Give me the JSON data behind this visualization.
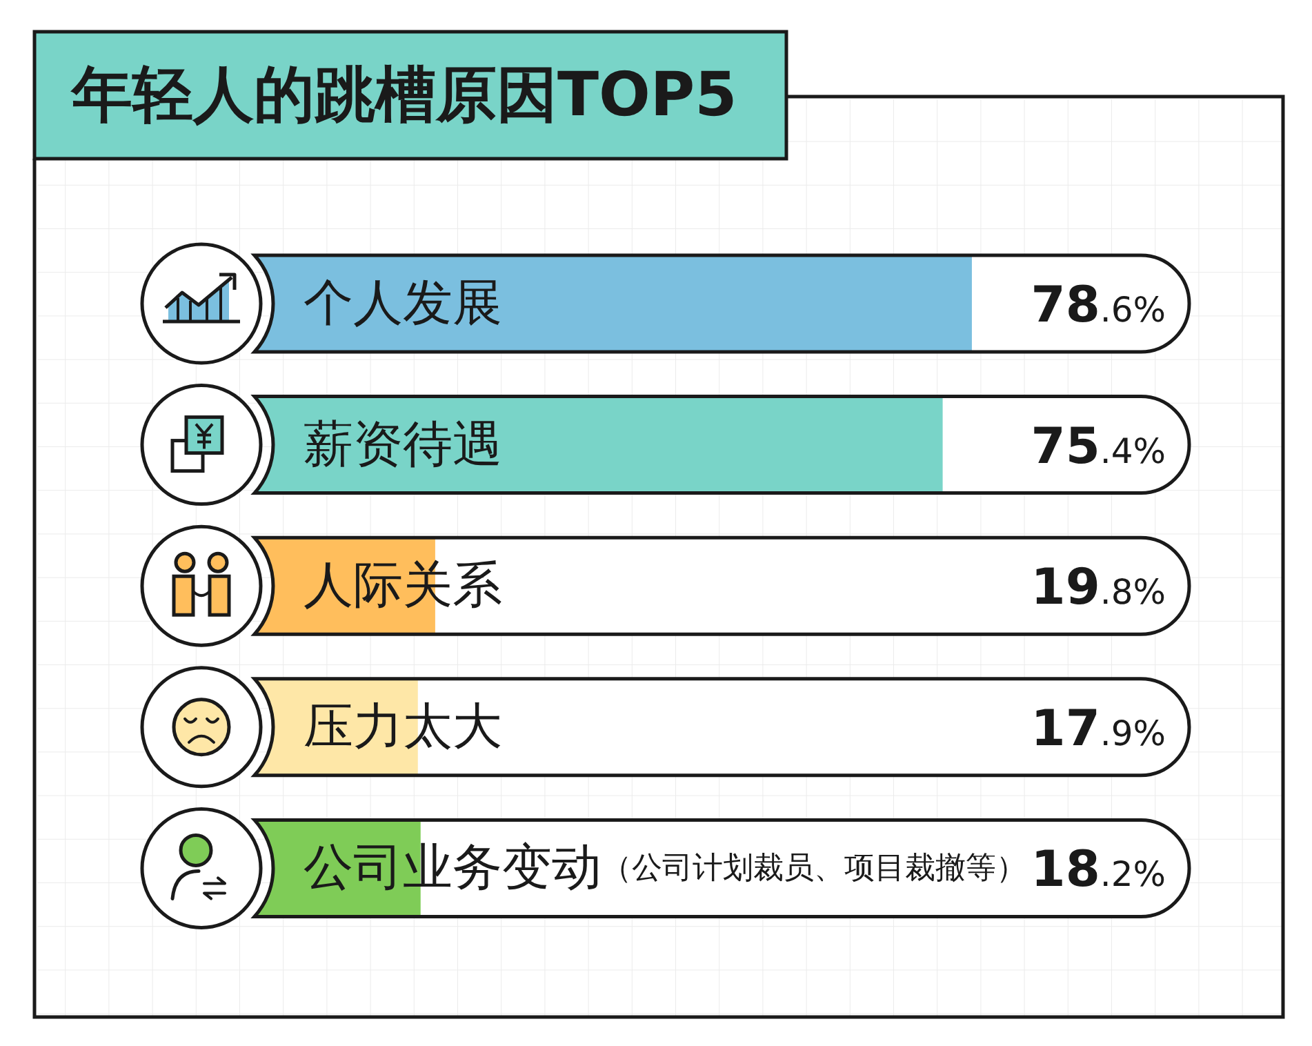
{
  "chart_data": {
    "type": "bar",
    "orientation": "horizontal",
    "title": "年轻人的跳槽原因TOP5",
    "categories": [
      "个人发展",
      "薪资待遇",
      "人际关系",
      "压力太大",
      "公司业务变动（公司计划裁员、项目裁撤等）"
    ],
    "values": [
      78.6,
      75.4,
      19.8,
      17.9,
      18.2
    ],
    "colors": [
      "#7bbfdf",
      "#79d4c8",
      "#ffbe5c",
      "#fee7a7",
      "#7fcc57"
    ],
    "value_labels": [
      "78.6%",
      "75.4%",
      "19.8%",
      "17.9%",
      "18.2%"
    ]
  }
}
